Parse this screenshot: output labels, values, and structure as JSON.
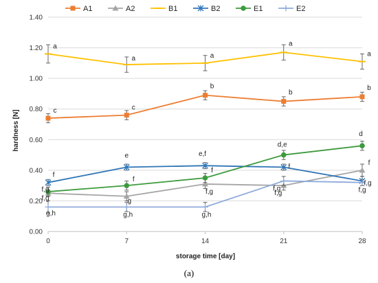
{
  "chart_data": {
    "type": "line",
    "xlabel": "storage time [day]",
    "ylabel": "hardness [N]",
    "x": [
      0,
      7,
      14,
      21,
      28
    ],
    "xlim": [
      0,
      28
    ],
    "ylim": [
      0,
      1.4
    ],
    "yticks": [
      "0.00",
      "0.20",
      "0.40",
      "0.60",
      "0.80",
      "1.00",
      "1.20",
      "1.40"
    ],
    "xticks": [
      "0",
      "7",
      "14",
      "21",
      "28"
    ],
    "legend": "top",
    "grid": "horizontal",
    "caption": "(a)",
    "series": [
      {
        "name": "A1",
        "color": "#ED7D31",
        "marker": "square",
        "values": [
          0.74,
          0.76,
          0.89,
          0.85,
          0.88
        ],
        "errors": [
          0.03,
          0.03,
          0.03,
          0.03,
          0.03
        ],
        "labels": [
          "c",
          "c",
          "b",
          "b",
          "b"
        ]
      },
      {
        "name": "A2",
        "color": "#A5A5A5",
        "marker": "triangle",
        "values": [
          0.25,
          0.23,
          0.31,
          0.3,
          0.4
        ],
        "errors": [
          0.02,
          0.03,
          0.03,
          0.03,
          0.04
        ],
        "labels": [
          "f,g",
          "g",
          "f,g",
          "f,g",
          "f"
        ]
      },
      {
        "name": "B1",
        "color": "#FFC000",
        "marker": "dash",
        "values": [
          1.16,
          1.09,
          1.1,
          1.17,
          1.11
        ],
        "errors": [
          0.06,
          0.05,
          0.05,
          0.05,
          0.05
        ],
        "labels": [
          "a",
          "a",
          "a",
          "a",
          "a"
        ]
      },
      {
        "name": "B2",
        "color": "#2E75B6",
        "marker": "star",
        "values": [
          0.32,
          0.42,
          0.43,
          0.42,
          0.33
        ],
        "errors": [
          0.02,
          0.02,
          0.02,
          0.02,
          0.03
        ],
        "labels": [
          "f",
          "e",
          "e,f",
          "f",
          "f,g"
        ]
      },
      {
        "name": "E1",
        "color": "#3D9A3D",
        "marker": "circle",
        "values": [
          0.26,
          0.3,
          0.35,
          0.5,
          0.56
        ],
        "errors": [
          0.03,
          0.03,
          0.03,
          0.03,
          0.03
        ],
        "labels": [
          "f,g",
          "f",
          "f",
          "d,e",
          "d"
        ]
      },
      {
        "name": "E2",
        "color": "#8FAADC",
        "marker": "plus",
        "values": [
          0.16,
          0.16,
          0.16,
          0.33,
          0.32
        ],
        "errors": [
          0.04,
          0.03,
          0.03,
          0.03,
          0.02
        ],
        "labels": [
          "g,h",
          "g,h",
          "g,h",
          "f,g",
          "f,g"
        ]
      }
    ]
  }
}
